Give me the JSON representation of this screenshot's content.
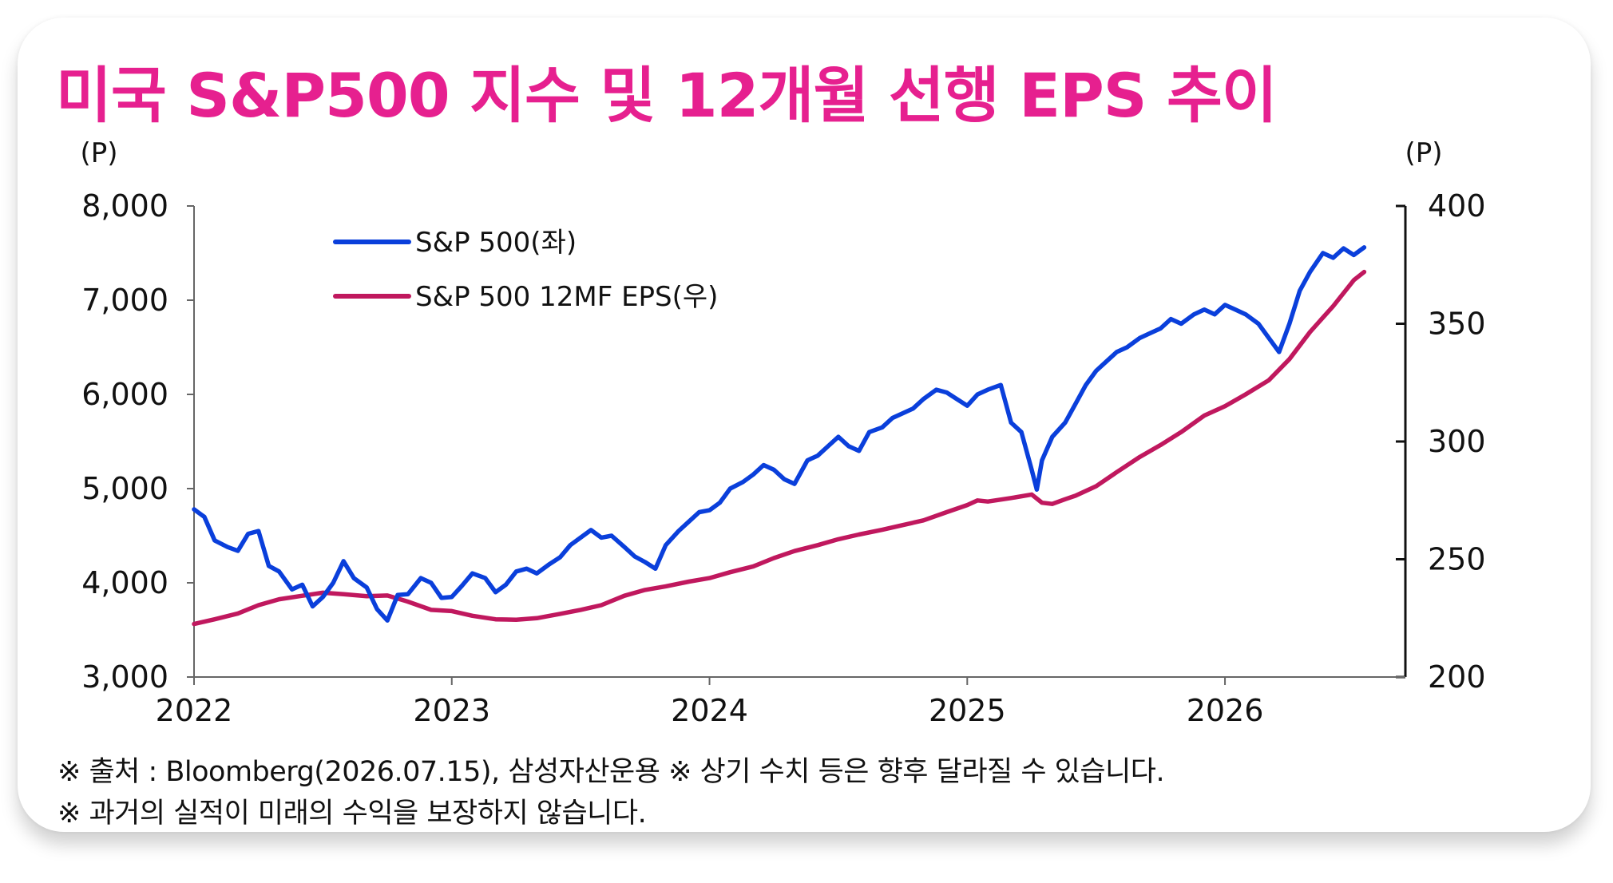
{
  "title": "미국 S&P500 지수 및 12개월 선행 EPS 추이",
  "notes": {
    "line1": "※ 출처 : Bloomberg(2026.07.15), 삼성자산운용 ※ 상기 수치 등은 향후 달라질 수 있습니다.",
    "line2": "※ 과거의 실적이 미래의 수익을 보장하지 않습니다."
  },
  "colors": {
    "title": "#e6208f",
    "sp500": "#0a3fdb",
    "eps": "#c0185e"
  },
  "chart_data": {
    "type": "line",
    "title": "미국 S&P500 지수 및 12개월 선행 EPS 추이",
    "xlabel": "",
    "x_axis": {
      "range": [
        2022.0,
        2026.7
      ],
      "ticks": [
        2022,
        2023,
        2024,
        2025,
        2026
      ],
      "tick_labels": [
        "2022",
        "2023",
        "2024",
        "2025",
        "2026"
      ]
    },
    "y_left": {
      "unit": "(P)",
      "range": [
        3000,
        8000
      ],
      "ticks": [
        3000,
        4000,
        5000,
        6000,
        7000,
        8000
      ],
      "tick_labels": [
        "3,000",
        "4,000",
        "5,000",
        "6,000",
        "7,000",
        "8,000"
      ]
    },
    "y_right": {
      "unit": "(P)",
      "range": [
        200,
        400
      ],
      "ticks": [
        200,
        250,
        300,
        350,
        400
      ],
      "tick_labels": [
        "200",
        "250",
        "300",
        "350",
        "400"
      ]
    },
    "legend": {
      "placement": "top-left"
    },
    "grid": false,
    "series": [
      {
        "name": "S&P 500(좌)",
        "axis": "left",
        "x": [
          2022.0,
          2022.04,
          2022.08,
          2022.13,
          2022.17,
          2022.21,
          2022.25,
          2022.29,
          2022.33,
          2022.38,
          2022.42,
          2022.46,
          2022.5,
          2022.54,
          2022.58,
          2022.62,
          2022.67,
          2022.71,
          2022.75,
          2022.79,
          2022.83,
          2022.88,
          2022.92,
          2022.96,
          2023.0,
          2023.04,
          2023.08,
          2023.13,
          2023.17,
          2023.21,
          2023.25,
          2023.29,
          2023.33,
          2023.38,
          2023.42,
          2023.46,
          2023.5,
          2023.54,
          2023.58,
          2023.62,
          2023.67,
          2023.71,
          2023.75,
          2023.79,
          2023.83,
          2023.88,
          2023.92,
          2023.96,
          2024.0,
          2024.04,
          2024.08,
          2024.13,
          2024.17,
          2024.21,
          2024.25,
          2024.29,
          2024.33,
          2024.38,
          2024.42,
          2024.46,
          2024.5,
          2024.54,
          2024.58,
          2024.62,
          2024.67,
          2024.71,
          2024.75,
          2024.79,
          2024.83,
          2024.88,
          2024.92,
          2024.96,
          2025.0,
          2025.04,
          2025.08,
          2025.13,
          2025.17,
          2025.21,
          2025.25,
          2025.27,
          2025.29,
          2025.33,
          2025.38,
          2025.42,
          2025.46,
          2025.5,
          2025.54,
          2025.58,
          2025.62,
          2025.67,
          2025.71,
          2025.75,
          2025.79,
          2025.83,
          2025.88,
          2025.92,
          2025.96,
          2026.0,
          2026.04,
          2026.08,
          2026.13,
          2026.17,
          2026.21,
          2026.25,
          2026.29,
          2026.33,
          2026.38,
          2026.42,
          2026.46,
          2026.5,
          2026.54
        ],
        "values": [
          4780,
          4700,
          4450,
          4380,
          4340,
          4520,
          4550,
          4180,
          4120,
          3930,
          3980,
          3750,
          3850,
          4000,
          4230,
          4050,
          3950,
          3720,
          3600,
          3870,
          3880,
          4050,
          4000,
          3840,
          3850,
          3970,
          4100,
          4050,
          3900,
          3980,
          4120,
          4150,
          4100,
          4200,
          4270,
          4400,
          4480,
          4560,
          4480,
          4500,
          4380,
          4280,
          4220,
          4150,
          4400,
          4550,
          4650,
          4750,
          4770,
          4850,
          5000,
          5070,
          5150,
          5250,
          5200,
          5100,
          5050,
          5300,
          5350,
          5450,
          5550,
          5450,
          5400,
          5600,
          5650,
          5750,
          5800,
          5850,
          5950,
          6050,
          6020,
          5950,
          5880,
          6000,
          6050,
          6100,
          5700,
          5600,
          5200,
          4990,
          5300,
          5550,
          5700,
          5900,
          6100,
          6250,
          6350,
          6450,
          6500,
          6600,
          6650,
          6700,
          6800,
          6750,
          6850,
          6900,
          6850,
          6950,
          6900,
          6850,
          6750,
          6600,
          6450,
          6750,
          7100,
          7300,
          7500,
          7450,
          7550,
          7480,
          7560
        ]
      },
      {
        "name": "S&P 500 12MF EPS(우)",
        "axis": "right",
        "x": [
          2022.0,
          2022.08,
          2022.17,
          2022.25,
          2022.33,
          2022.42,
          2022.5,
          2022.58,
          2022.67,
          2022.75,
          2022.83,
          2022.92,
          2023.0,
          2023.08,
          2023.17,
          2023.25,
          2023.33,
          2023.42,
          2023.5,
          2023.58,
          2023.67,
          2023.75,
          2023.83,
          2023.92,
          2024.0,
          2024.08,
          2024.17,
          2024.25,
          2024.33,
          2024.42,
          2024.5,
          2024.58,
          2024.67,
          2024.75,
          2024.83,
          2024.92,
          2025.0,
          2025.04,
          2025.08,
          2025.17,
          2025.25,
          2025.29,
          2025.33,
          2025.38,
          2025.42,
          2025.5,
          2025.58,
          2025.67,
          2025.75,
          2025.83,
          2025.92,
          2026.0,
          2026.08,
          2026.17,
          2026.25,
          2026.33,
          2026.42,
          2026.5,
          2026.54
        ],
        "values": [
          222.5,
          224.5,
          227.0,
          230.5,
          233.0,
          234.5,
          235.8,
          235.2,
          234.3,
          234.6,
          232.0,
          228.5,
          228.0,
          226.0,
          224.5,
          224.3,
          225.0,
          226.8,
          228.5,
          230.5,
          234.5,
          237.0,
          238.5,
          240.5,
          242.0,
          244.5,
          247.0,
          250.5,
          253.5,
          256.0,
          258.5,
          260.5,
          262.5,
          264.5,
          266.5,
          270.0,
          273.0,
          275.0,
          274.5,
          276.0,
          277.5,
          274.0,
          273.5,
          275.5,
          277.0,
          281.0,
          287.0,
          293.5,
          298.5,
          304.0,
          311.0,
          315.0,
          320.0,
          326.0,
          335.0,
          346.5,
          357.5,
          368.5,
          372.0
        ]
      }
    ]
  }
}
